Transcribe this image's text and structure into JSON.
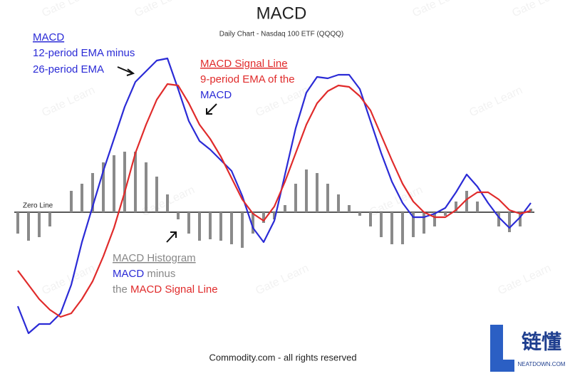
{
  "chart_data": {
    "type": "line",
    "title": "MACD",
    "subtitle": "Daily Chart - Nasdaq 100 ETF (QQQQ)",
    "categories": [
      null,
      null,
      null,
      null,
      null,
      null,
      null,
      null,
      null,
      null,
      null,
      null,
      null,
      null,
      null,
      null,
      null,
      null,
      null,
      null,
      null,
      null,
      null,
      null,
      null,
      null,
      null,
      null,
      null,
      null,
      null,
      null,
      null,
      null,
      null,
      null,
      null,
      null,
      null,
      null,
      null,
      null,
      null,
      null,
      null,
      null,
      null,
      null,
      null
    ],
    "ylim": [
      -180,
      230
    ],
    "zero_line_label": "Zero Line",
    "series": [
      {
        "name": "MACD",
        "color": "#2b2bd6",
        "style": "line",
        "values": [
          -132,
          -170,
          -157,
          -157,
          -142,
          -102,
          -42,
          8,
          58,
          103,
          148,
          183,
          198,
          213,
          216,
          173,
          128,
          100,
          88,
          73,
          58,
          23,
          -22,
          -42,
          -12,
          53,
          118,
          168,
          190,
          188,
          193,
          193,
          173,
          128,
          83,
          43,
          13,
          -7,
          -7,
          -2,
          6,
          28,
          53,
          36,
          13,
          -7,
          -22,
          -7,
          13
        ]
      },
      {
        "name": "MACD Signal Line",
        "color": "#e02b2b",
        "style": "line",
        "values": [
          -82,
          -102,
          -122,
          -137,
          -147,
          -142,
          -122,
          -97,
          -62,
          -22,
          28,
          83,
          123,
          158,
          180,
          178,
          153,
          123,
          103,
          78,
          48,
          18,
          -2,
          -12,
          8,
          43,
          83,
          123,
          153,
          170,
          178,
          176,
          163,
          143,
          108,
          73,
          40,
          15,
          0,
          -7,
          -7,
          3,
          18,
          28,
          28,
          18,
          3,
          -2,
          2
        ]
      },
      {
        "name": "MACD Histogram",
        "color": "#8a8a8a",
        "style": "bar",
        "values": [
          -30,
          -40,
          -35,
          -20,
          0,
          30,
          40,
          55,
          70,
          80,
          85,
          85,
          70,
          50,
          25,
          -10,
          -30,
          -40,
          -38,
          -40,
          -45,
          -50,
          -30,
          -15,
          -10,
          10,
          40,
          60,
          55,
          40,
          25,
          10,
          -5,
          -20,
          -35,
          -45,
          -45,
          -35,
          -30,
          -20,
          -5,
          15,
          30,
          15,
          0,
          -20,
          -28,
          -20,
          5
        ]
      }
    ],
    "annotations": {
      "macd_line2": "12-period EMA minus",
      "macd_line3": "26-period EMA",
      "signal_line2": "9-period EMA of the",
      "hist_minus": "minus",
      "hist_the": "the"
    },
    "footer": "Commodity.com - all rights reserved",
    "watermark": "Gate Learn",
    "logo": {
      "text": "链懂",
      "subtext": "NEATDOWN.COM"
    }
  }
}
